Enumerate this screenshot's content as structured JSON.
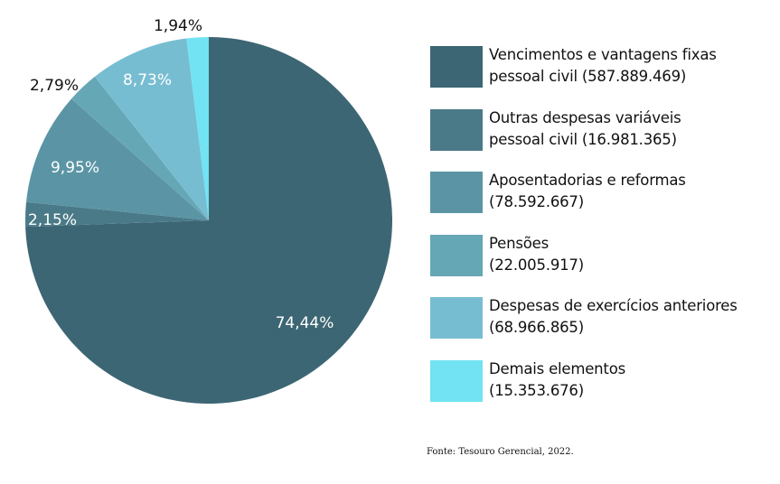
{
  "chart_data": {
    "type": "pie",
    "start_angle": "top, clockwise",
    "slices": [
      {
        "name": "Vencimentos e vantagens fixas pessoal civil",
        "value": 587889469,
        "value_label": "(587.889.469)",
        "percent": 74.44,
        "label": "74,44%",
        "color": "#3d6674",
        "label_color": "#ffffff"
      },
      {
        "name": "Outras despesas variáveis pessoal civil",
        "value": 16981365,
        "value_label": "(16.981.365)",
        "percent": 2.15,
        "label": "2,15%",
        "color": "#4a7a87",
        "label_color": "#ffffff"
      },
      {
        "name": "Aposentadorias e reformas",
        "value": 78592667,
        "value_label": "(78.592.667)",
        "percent": 9.95,
        "label": "9,95%",
        "color": "#5b95a5",
        "label_color": "#ffffff"
      },
      {
        "name": "Pensões",
        "value": 22005917,
        "value_label": "(22.005.917)",
        "percent": 2.79,
        "label": "2,79%",
        "color": "#66a7b6",
        "label_color": "#111111"
      },
      {
        "name": "Despesas de exercícios anteriores",
        "value": 68966865,
        "value_label": "(68.966.865)",
        "percent": 8.73,
        "label": "8,73%",
        "color": "#77bdd2",
        "label_color": "#ffffff"
      },
      {
        "name": "Demais elementos",
        "value": 15353676,
        "value_label": "(15.353.676)",
        "percent": 1.94,
        "label": "1,94%",
        "color": "#72e3f2",
        "label_color": "#111111"
      }
    ],
    "legend": {
      "placement": "right",
      "entries": [
        [
          "Vencimentos e vantagens fixas",
          "pessoal civil (587.889.469)"
        ],
        [
          "Outras despesas variáveis",
          "pessoal civil (16.981.365)"
        ],
        [
          "Aposentadorias e reformas",
          "(78.592.667)"
        ],
        [
          "Pensões",
          "(22.005.917)"
        ],
        [
          "Despesas de exercícios anteriores",
          "(68.966.865)"
        ],
        [
          "Demais elementos",
          "(15.353.676)"
        ]
      ]
    }
  },
  "source": "Fonte:  Tesouro Gerencial, 2022."
}
